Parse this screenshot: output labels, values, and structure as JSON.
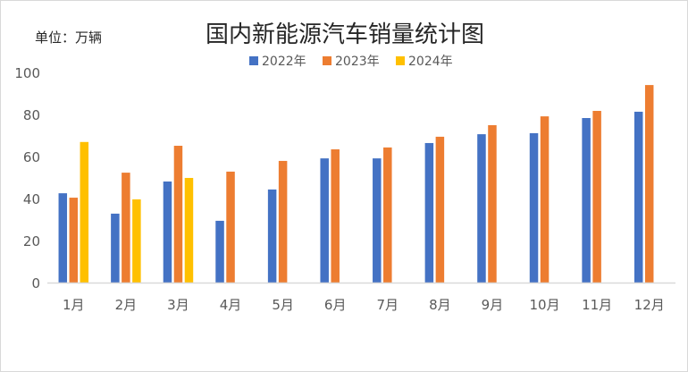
{
  "chart_data": {
    "type": "bar",
    "title": "国内新能源汽车销量统计图",
    "unit_label": "单位：万辆",
    "categories": [
      "1月",
      "2月",
      "3月",
      "4月",
      "5月",
      "6月",
      "7月",
      "8月",
      "9月",
      "10月",
      "11月",
      "12月"
    ],
    "series": [
      {
        "name": "2022年",
        "color": "#4472c4",
        "values": [
          42.5,
          32.8,
          48.1,
          29.4,
          44.3,
          59.1,
          59.1,
          66.4,
          70.6,
          71.1,
          78.3,
          81.3
        ]
      },
      {
        "name": "2023年",
        "color": "#ed7d31",
        "values": [
          40.4,
          52.3,
          65.1,
          52.8,
          57.9,
          63.4,
          64.3,
          69.4,
          74.9,
          79.1,
          81.7,
          94.0
        ]
      },
      {
        "name": "2024年",
        "color": "#ffc000",
        "values": [
          66.9,
          39.6,
          49.8,
          null,
          null,
          null,
          null,
          null,
          null,
          null,
          null,
          null
        ]
      }
    ],
    "ylim": [
      0,
      100
    ],
    "yticks": [
      0,
      20,
      40,
      60,
      80,
      100
    ],
    "grid": false,
    "legend": "top"
  }
}
